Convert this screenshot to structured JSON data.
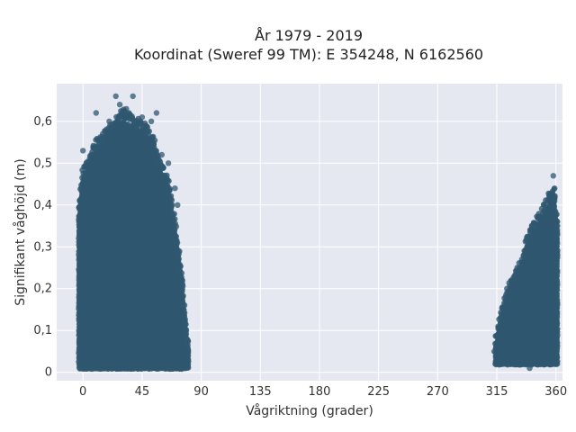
{
  "chart_data": {
    "type": "scatter",
    "title_lines": [
      "År 1979 - 2019",
      "Koordinat (Sweref 99 TM): E 354248, N 6162560"
    ],
    "xlabel": "Vågriktning (grader)",
    "ylabel": "Signifikant våghöjd (m)",
    "xlim": [
      -20,
      365
    ],
    "ylim": [
      -0.02,
      0.69
    ],
    "x_ticks": [
      0,
      45,
      90,
      135,
      180,
      225,
      270,
      315,
      360
    ],
    "x_tick_labels": [
      "0",
      "45",
      "90",
      "135",
      "180",
      "225",
      "270",
      "315",
      "360"
    ],
    "y_ticks": [
      0,
      0.1,
      0.2,
      0.3,
      0.4,
      0.5,
      0.6
    ],
    "y_tick_labels": [
      "0",
      "0,1",
      "0,2",
      "0,3",
      "0,4",
      "0,5",
      "0,6"
    ],
    "grid": true,
    "series": [
      {
        "marker_color": "#2f5770",
        "clusters": [
          {
            "x_range": [
              -3,
              81
            ],
            "y_min": 0.01,
            "envelope": [
              [
                -3,
                0.38
              ],
              [
                0,
                0.46
              ],
              [
                5,
                0.49
              ],
              [
                10,
                0.53
              ],
              [
                20,
                0.56
              ],
              [
                30,
                0.6
              ],
              [
                40,
                0.58
              ],
              [
                50,
                0.56
              ],
              [
                55,
                0.52
              ],
              [
                60,
                0.47
              ],
              [
                65,
                0.44
              ],
              [
                70,
                0.34
              ],
              [
                75,
                0.22
              ],
              [
                79,
                0.08
              ],
              [
                81,
                0.04
              ]
            ]
          },
          {
            "x_range": [
              314,
              361
            ],
            "y_min": 0.02,
            "envelope": [
              [
                314,
                0.06
              ],
              [
                318,
                0.12
              ],
              [
                322,
                0.16
              ],
              [
                326,
                0.2
              ],
              [
                330,
                0.22
              ],
              [
                335,
                0.26
              ],
              [
                340,
                0.32
              ],
              [
                345,
                0.34
              ],
              [
                350,
                0.37
              ],
              [
                355,
                0.4
              ],
              [
                358,
                0.42
              ],
              [
                361,
                0.35
              ]
            ]
          }
        ],
        "notable_points": [
          {
            "x": 25,
            "y": 0.66
          },
          {
            "x": 38,
            "y": 0.66
          },
          {
            "x": 28,
            "y": 0.64
          },
          {
            "x": 10,
            "y": 0.62
          },
          {
            "x": 56,
            "y": 0.62
          },
          {
            "x": 45,
            "y": 0.61
          },
          {
            "x": 20,
            "y": 0.6
          },
          {
            "x": 52,
            "y": 0.6
          },
          {
            "x": 33,
            "y": 0.63
          },
          {
            "x": 15,
            "y": 0.57
          },
          {
            "x": 60,
            "y": 0.52
          },
          {
            "x": 0,
            "y": 0.53
          },
          {
            "x": 5,
            "y": 0.51
          },
          {
            "x": 65,
            "y": 0.5
          },
          {
            "x": 70,
            "y": 0.44
          },
          {
            "x": 72,
            "y": 0.4
          },
          {
            "x": 358,
            "y": 0.47
          },
          {
            "x": 359,
            "y": 0.44
          },
          {
            "x": 355,
            "y": 0.42
          },
          {
            "x": 350,
            "y": 0.38
          },
          {
            "x": 343,
            "y": 0.35
          },
          {
            "x": 338,
            "y": 0.3
          },
          {
            "x": 332,
            "y": 0.25
          },
          {
            "x": 327,
            "y": 0.2
          },
          {
            "x": 322,
            "y": 0.17
          },
          {
            "x": 316,
            "y": 0.11
          },
          {
            "x": 313,
            "y": 0.05
          },
          {
            "x": 340,
            "y": 0.01
          }
        ]
      }
    ]
  }
}
